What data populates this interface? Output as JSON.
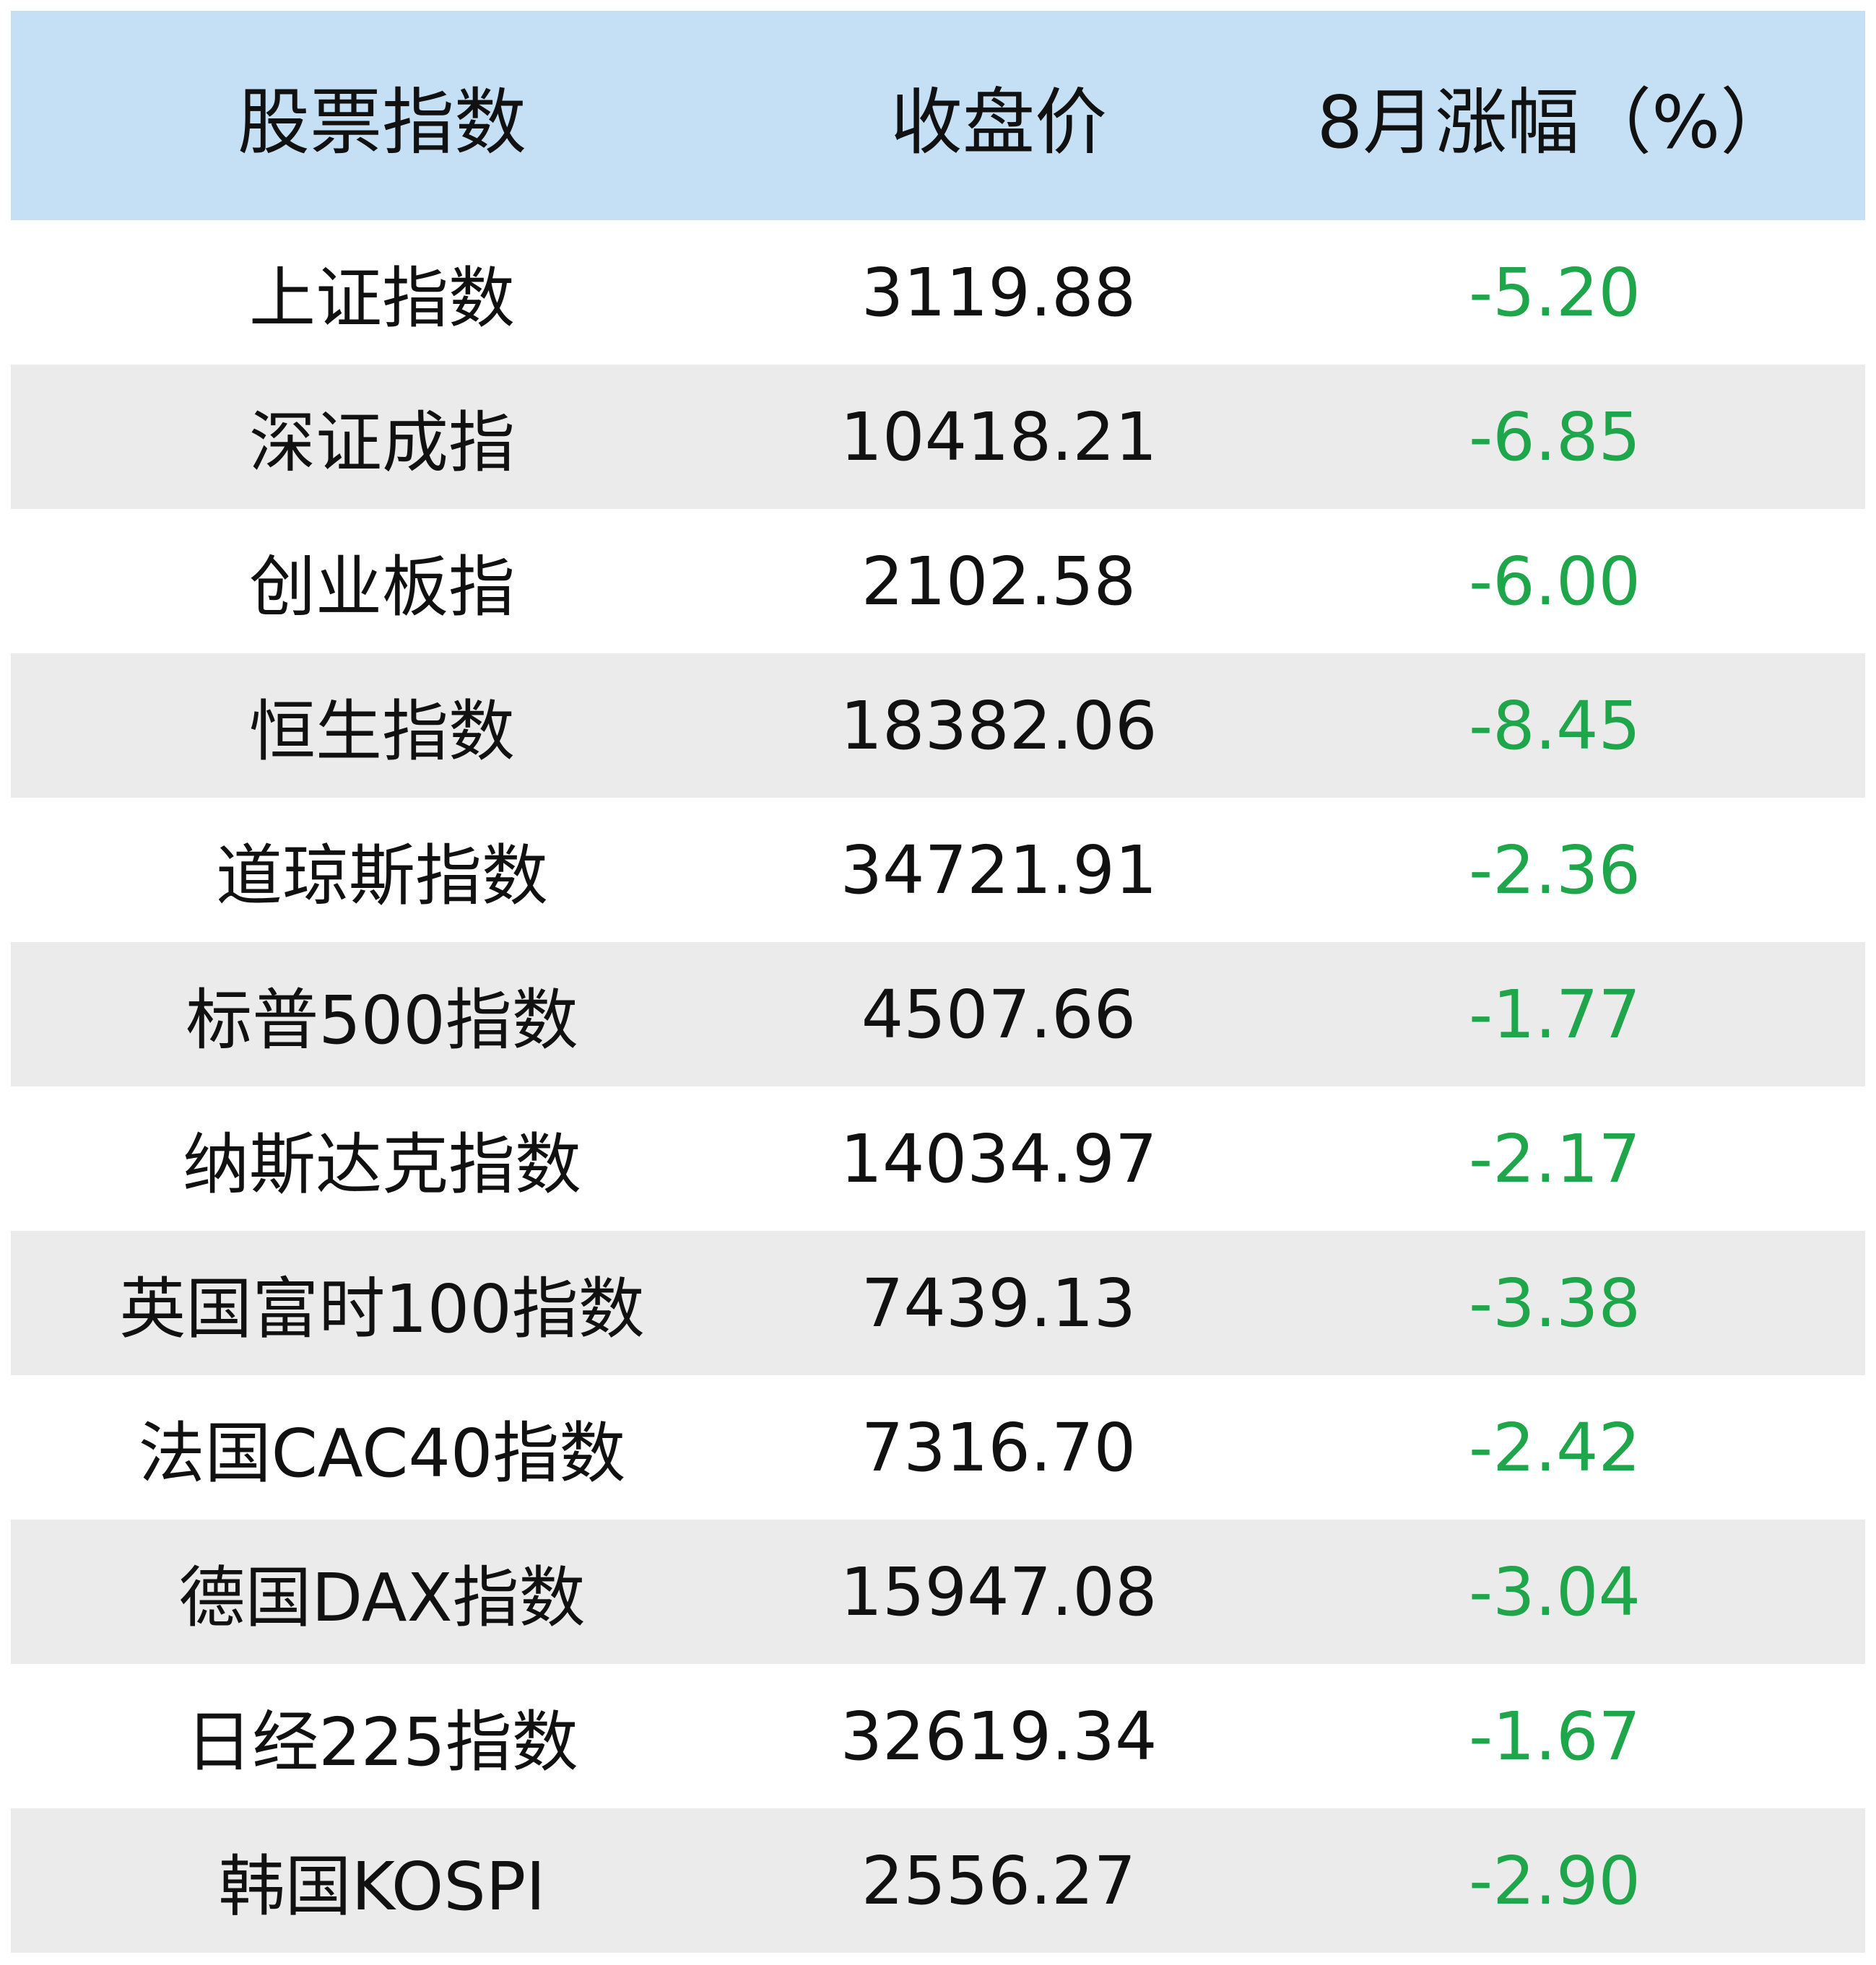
{
  "colors": {
    "header_bg": "#c5e0f4",
    "stripe_bg": "#ebebeb",
    "negative_change": "#1fa64b",
    "text": "#111111"
  },
  "header": {
    "index": "股票指数",
    "close": "收盘价",
    "change": "8月涨幅（%）"
  },
  "rows": [
    {
      "name": "上证指数",
      "close": "3119.88",
      "change": "-5.20"
    },
    {
      "name": "深证成指",
      "close": "10418.21",
      "change": "-6.85"
    },
    {
      "name": "创业板指",
      "close": "2102.58",
      "change": "-6.00"
    },
    {
      "name": "恒生指数",
      "close": "18382.06",
      "change": "-8.45"
    },
    {
      "name": "道琼斯指数",
      "close": "34721.91",
      "change": "-2.36"
    },
    {
      "name": "标普500指数",
      "close": "4507.66",
      "change": "-1.77"
    },
    {
      "name": "纳斯达克指数",
      "close": "14034.97",
      "change": "-2.17"
    },
    {
      "name": "英国富时100指数",
      "close": "7439.13",
      "change": "-3.38"
    },
    {
      "name": "法国CAC40指数",
      "close": "7316.70",
      "change": "-2.42"
    },
    {
      "name": "德国DAX指数",
      "close": "15947.08",
      "change": "-3.04"
    },
    {
      "name": "日经225指数",
      "close": "32619.34",
      "change": "-1.67"
    },
    {
      "name": "韩国KOSPI",
      "close": "2556.27",
      "change": "-2.90"
    }
  ]
}
